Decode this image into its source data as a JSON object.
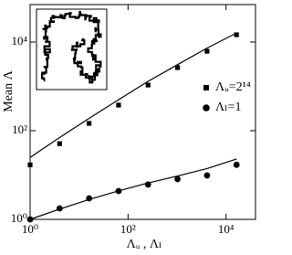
{
  "chart_data": {
    "type": "scatter",
    "x_label": "Λᵤ , Λₗ",
    "y_label": "Mean Λ",
    "x": [
      1,
      4,
      16,
      64,
      256,
      1024,
      4096,
      16384
    ],
    "series": [
      {
        "name": "Λᵤ=2¹⁴",
        "marker": "square",
        "color": "#000000",
        "values": [
          17,
          51,
          146,
          378,
          1070,
          2650,
          6200,
          14600
        ]
      },
      {
        "name": "Λₗ=1",
        "marker": "circle",
        "color": "#000000",
        "values": [
          1,
          1.77,
          2.98,
          4.36,
          6.1,
          8.1,
          9.8,
          17
        ]
      }
    ],
    "fit_lines": [
      {
        "color": "#000000",
        "values": [
          25,
          70,
          190,
          500,
          1300,
          3100,
          7300,
          16000
        ]
      },
      {
        "color": "#000000",
        "values": [
          1,
          1.7,
          2.8,
          4.4,
          6.6,
          9.5,
          14,
          23
        ]
      }
    ],
    "log_x": true,
    "log_y": true,
    "xlim": [
      1,
      40000
    ],
    "ylim": [
      1,
      70000
    ],
    "xticks": [
      {
        "value": 1,
        "label": "10⁰"
      },
      {
        "value": 100,
        "label": "10²"
      },
      {
        "value": 10000,
        "label": "10⁴"
      }
    ],
    "yticks": [
      {
        "value": 1,
        "label": "10⁰"
      },
      {
        "value": 100,
        "label": "10²"
      },
      {
        "value": 10000,
        "label": "10⁴"
      }
    ],
    "legend": "right"
  }
}
